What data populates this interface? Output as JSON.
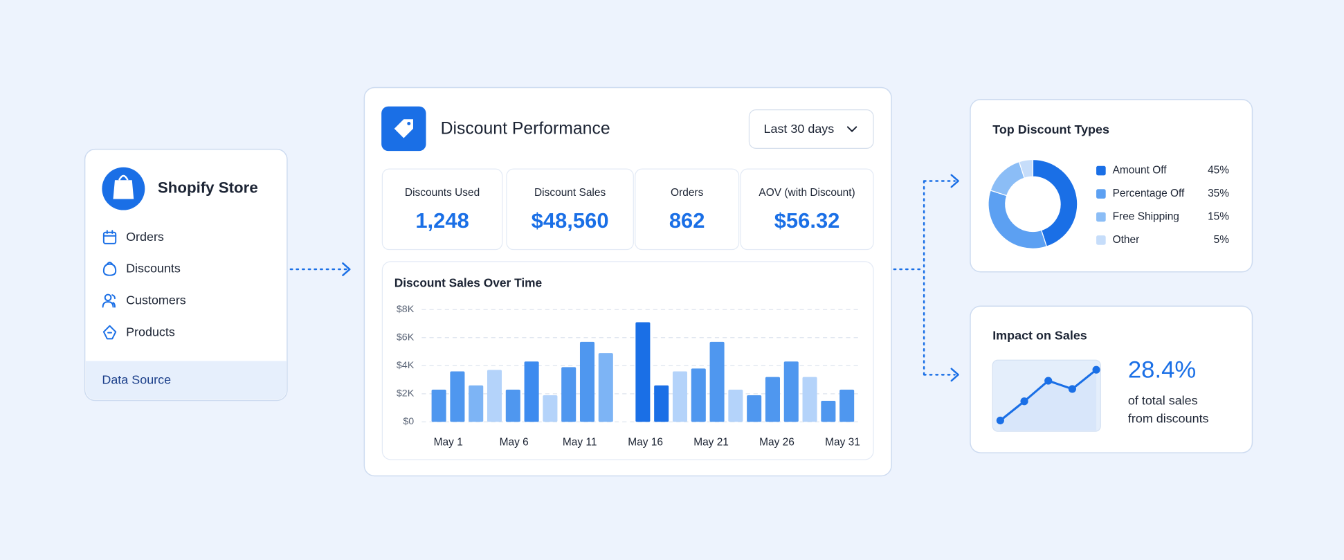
{
  "sidebar": {
    "title": "Shopify Store",
    "items": [
      "Orders",
      "Discounts",
      "Customers",
      "Products"
    ],
    "footer": "Data Source"
  },
  "dashboard": {
    "title": "Discount Performance",
    "range": "Last 30 days",
    "kpis": [
      {
        "label": "Discounts Used",
        "value": "1,248"
      },
      {
        "label": "Discount Sales",
        "value": "$48,560"
      },
      {
        "label": "Orders",
        "value": "862"
      },
      {
        "label": "AOV (with Discount)",
        "value": "$56.32"
      }
    ],
    "chart": {
      "type": "bar",
      "title": "Discount Sales Over Time",
      "x_labels": [
        "May 1",
        "May 6",
        "May 11",
        "May 16",
        "May 21",
        "May 26",
        "May 31"
      ],
      "values": [
        2300,
        3600,
        2600,
        3700,
        2300,
        4300,
        1900,
        3900,
        5700,
        4900,
        null,
        7100,
        2600,
        3600,
        3800,
        5700,
        2300,
        1900,
        3200,
        4300,
        3200,
        1500,
        2300
      ],
      "colors": [
        "#4f97ef",
        "#4f97ef",
        "#7db4f5",
        "#b4d3fa",
        "#4f97ef",
        "#3d8bef",
        "#b4d3fa",
        "#4f97ef",
        "#4f97ef",
        "#7db4f5",
        null,
        "#1a6fe6",
        "#1a6fe6",
        "#b4d3fa",
        "#4f97ef",
        "#4f97ef",
        "#b4d3fa",
        "#4f97ef",
        "#4f97ef",
        "#4f97ef",
        "#b4d3fa",
        "#4f97ef",
        "#4f97ef"
      ],
      "ylim": [
        0,
        8000
      ],
      "yticks": [
        {
          "value": 0,
          "label": "$0"
        },
        {
          "value": 2000,
          "label": "$2K"
        },
        {
          "value": 4000,
          "label": "$4K"
        },
        {
          "value": 6000,
          "label": "$6K"
        },
        {
          "value": 8000,
          "label": "$8K"
        }
      ],
      "grid": true
    }
  },
  "top_types": {
    "type": "pie",
    "title": "Top Discount Types",
    "categories": [
      "Amount Off",
      "Percentage Off",
      "Free Shipping",
      "Other"
    ],
    "values": [
      45,
      35,
      15,
      5
    ],
    "value_labels": [
      "45%",
      "35%",
      "15%",
      "5%"
    ],
    "colors": [
      "#1a6fe6",
      "#5ca0f2",
      "#8bbdf6",
      "#c6ddfa"
    ]
  },
  "impact": {
    "type": "line",
    "title": "Impact on Sales",
    "values": [
      0.6,
      2,
      3.5,
      2.9,
      4.3
    ],
    "ylim": [
      0,
      5
    ],
    "color": "#1a6fe6",
    "stat": "28.4%",
    "caption": [
      "of total sales",
      "from discounts"
    ]
  }
}
